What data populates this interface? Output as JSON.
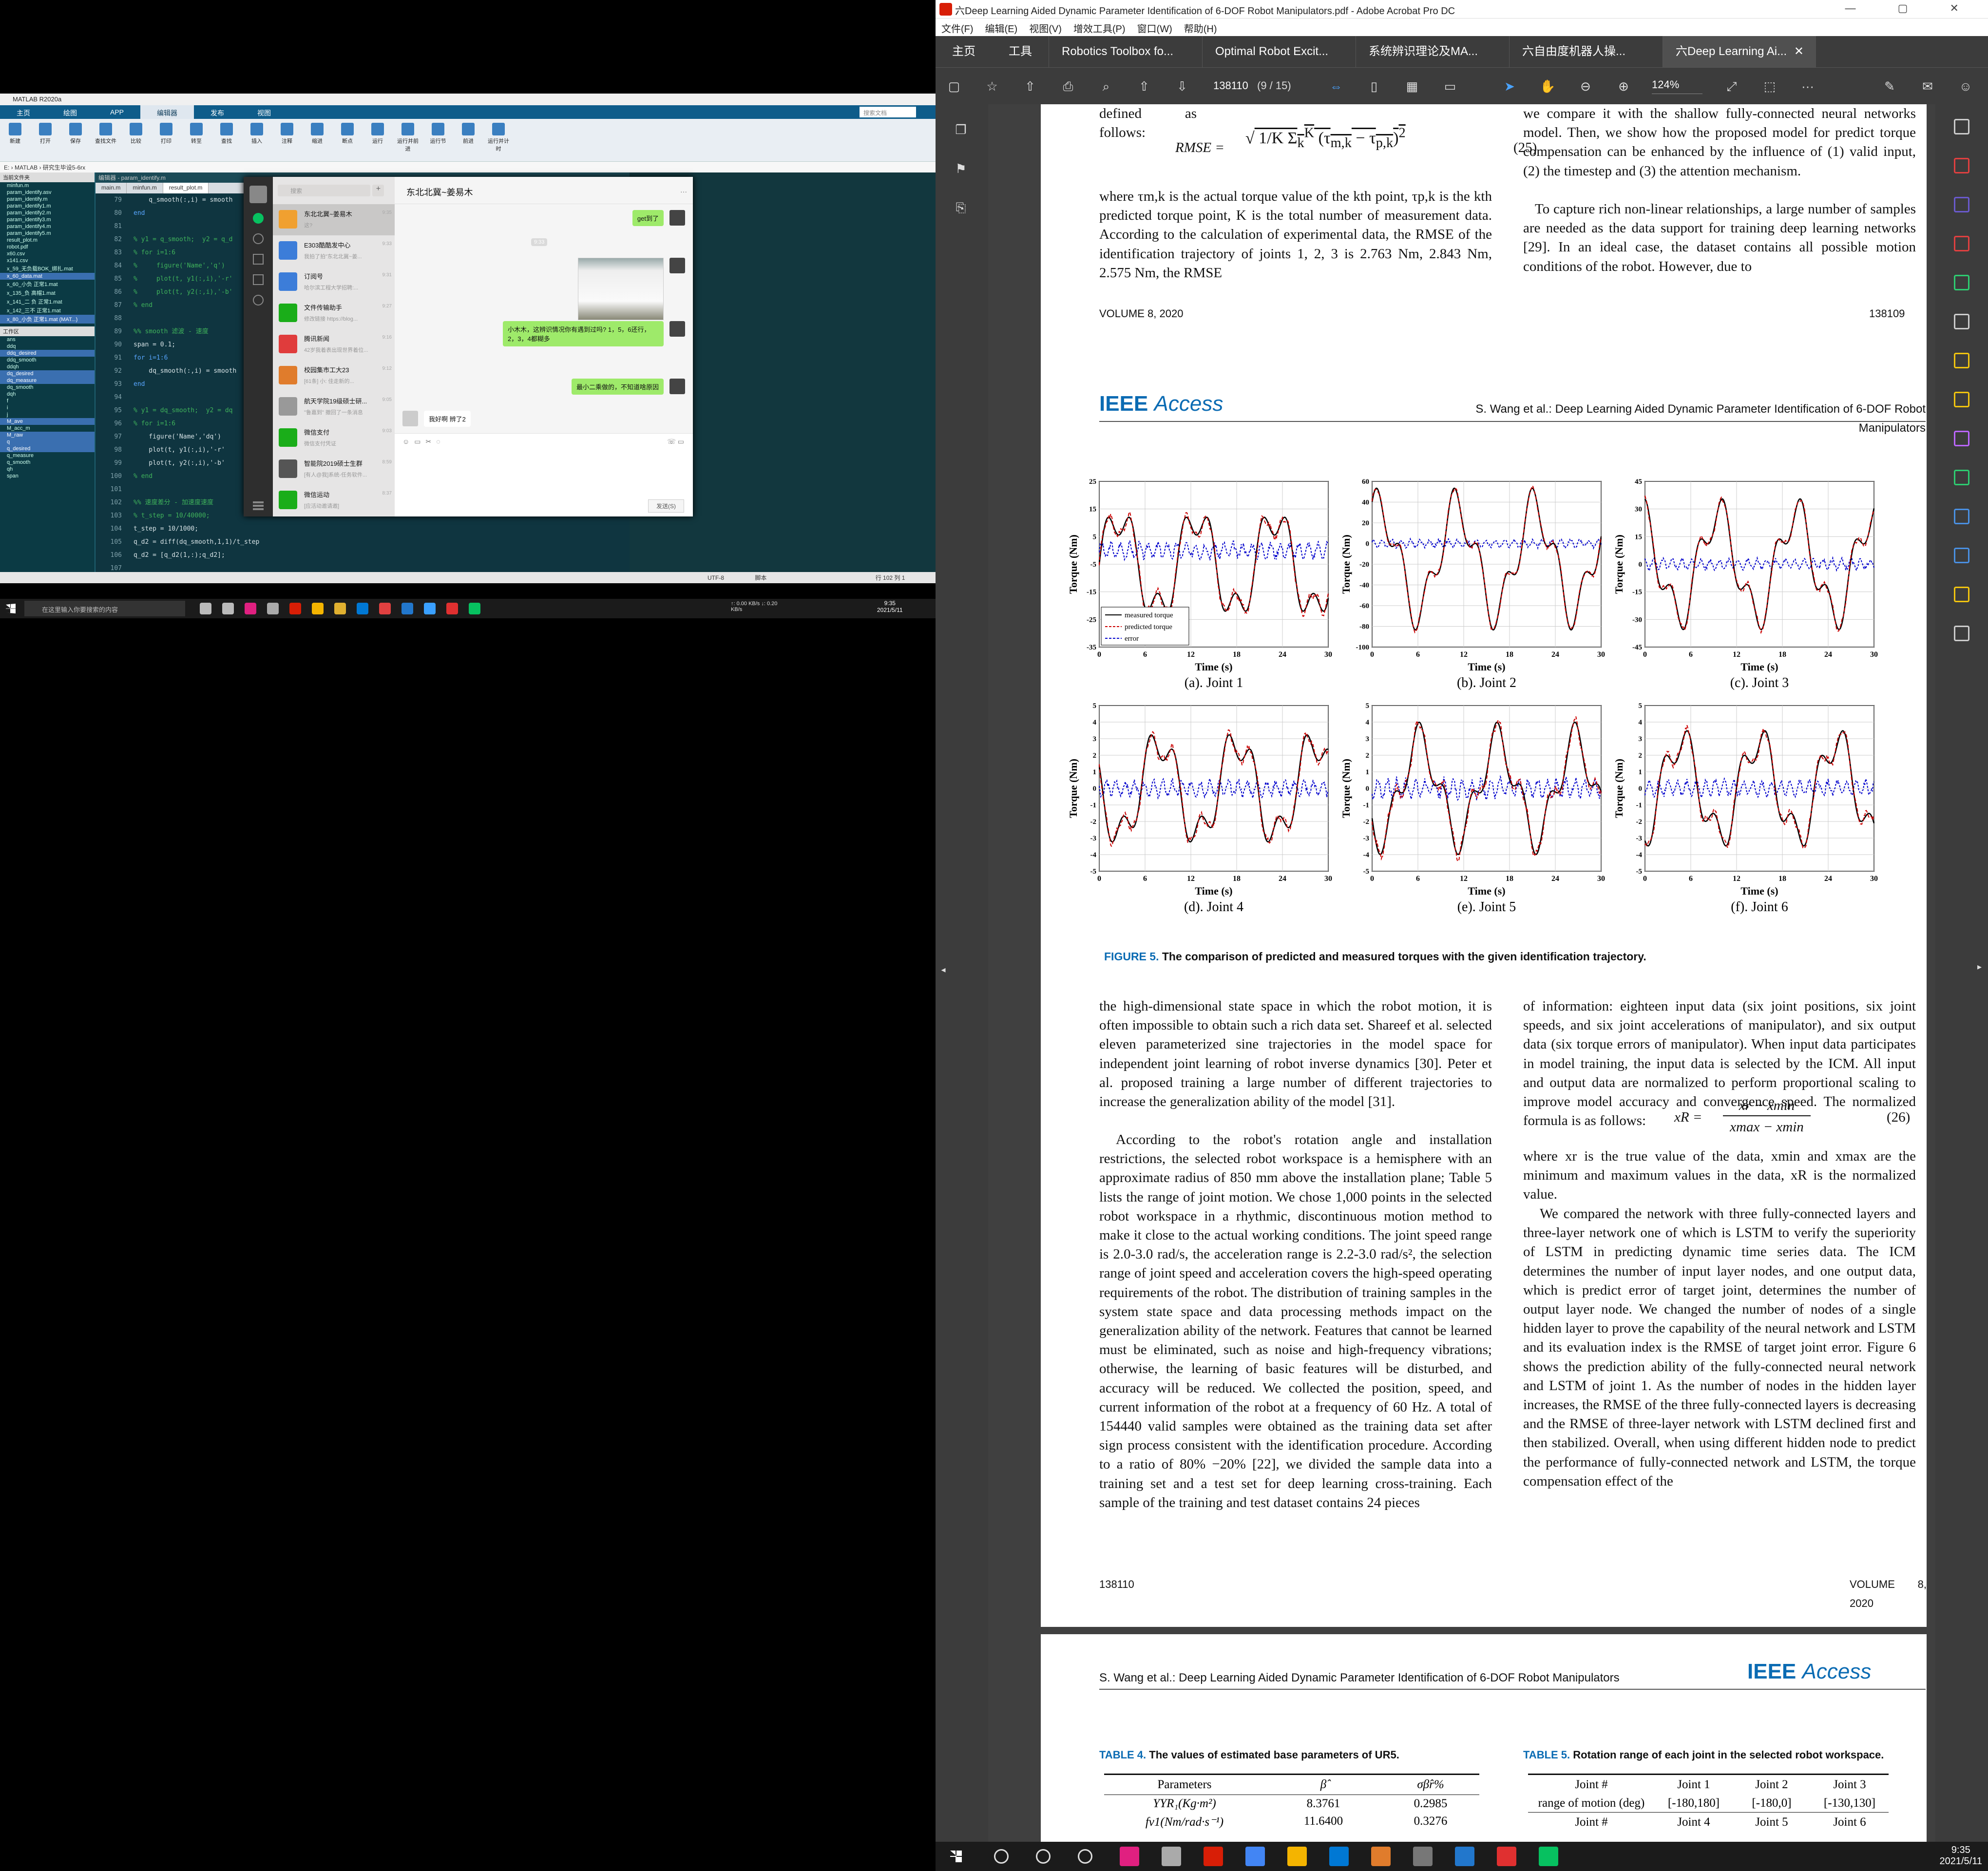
{
  "matlab": {
    "title": "MATLAB R2020a",
    "tabs": [
      "主页",
      "绘图",
      "APP",
      "编辑器",
      "发布",
      "视图"
    ],
    "ribbon": [
      "新建",
      "打开",
      "保存",
      "查找文件",
      "比较",
      "打印",
      "转至",
      "查找",
      "插入",
      "注释",
      "缩进",
      "断点",
      "运行",
      "运行并前进",
      "运行节",
      "前进",
      "运行并计时"
    ],
    "search_placeholder": "搜索文档",
    "address": "E: › MATLAB › 研究生毕设5-6rx",
    "left_header": "当前文件夹",
    "files": [
      "minfun.m",
      "param_identify.asv",
      "param_identify.m",
      "param_identify1.m",
      "param_identify2.m",
      "param_identify3.m",
      "param_identify4.m",
      "param_identify5.m",
      "result_plot.m",
      "robot.pdf",
      "x60.csv",
      "x141.csv",
      "x_59_无负载BOK_绑扎.mat",
      "x_60_data.mat",
      "x_60_小负 正常1.mat",
      "x_135_负 高帽1.mat",
      "x_141_二 负 正常1.mat",
      "x_142_三不 正常1.mat",
      "x_80_小负 正常1.mat (MAT...)"
    ],
    "workspace_header": "工作区",
    "ws_items": [
      "ans",
      "ddq",
      "ddq_desired",
      "ddq_smooth",
      "ddqh",
      "dq_desired",
      "dq_measure",
      "dq_smooth",
      "dqh",
      "f",
      "i",
      "j",
      "M_ave",
      "M_acc_m",
      "M_raw",
      "q",
      "q_desired",
      "q_measure",
      "q_smooth",
      "qh",
      "span"
    ],
    "editor_title": "编辑器 - param_identify.m",
    "editor_tabs": [
      "main.m",
      "minfun.m",
      "result_plot.m"
    ],
    "code": [
      [
        "79",
        "    q_smooth(:,i) = smooth"
      ],
      [
        "80",
        "end"
      ],
      [
        "81",
        ""
      ],
      [
        "82",
        "% y1 = q_smooth;  y2 = q_d"
      ],
      [
        "83",
        "% for i=1:6"
      ],
      [
        "84",
        "%     figure('Name','q')"
      ],
      [
        "85",
        "%     plot(t, y1(:,i),'-r'"
      ],
      [
        "86",
        "%     plot(t, y2(:,i),'-b'"
      ],
      [
        "87",
        "% end"
      ],
      [
        "88",
        ""
      ],
      [
        "89",
        "%% smooth 滤波 - 速度"
      ],
      [
        "90",
        "span = 0.1;"
      ],
      [
        "91",
        "for i=1:6"
      ],
      [
        "92",
        "    dq_smooth(:,i) = smooth"
      ],
      [
        "93",
        "end"
      ],
      [
        "94",
        ""
      ],
      [
        "95",
        "% y1 = dq_smooth;  y2 = dq"
      ],
      [
        "96",
        "% for i=1:6"
      ],
      [
        "97",
        "    figure('Name','dq')"
      ],
      [
        "98",
        "    plot(t, y1(:,i),'-r'"
      ],
      [
        "99",
        "    plot(t, y2(:,i),'-b'"
      ],
      [
        "100",
        "% end"
      ],
      [
        "101",
        ""
      ],
      [
        "102",
        "%% 速度差分 - 加速度速度"
      ],
      [
        "103",
        "% t_step = 10/40000;"
      ],
      [
        "104",
        "t_step = 10/1000;"
      ],
      [
        "105",
        "q_d2 = diff(dq_smooth,1,1)/t_step"
      ],
      [
        "106",
        "q_d2 = [q_d2(1,:);q_d2];"
      ],
      [
        "107",
        ""
      ],
      [
        "108",
        "span = 0.05;"
      ],
      [
        "109",
        "for i=1:6"
      ],
      [
        "110",
        "    ddq_smooth(:,i) = smooth(q_d2(:,i),span,'rloess')"
      ],
      [
        "111",
        "end"
      ],
      [
        "112",
        ""
      ]
    ],
    "status": [
      "UTF-8",
      "脚本",
      "行 102  列 1"
    ]
  },
  "wechat": {
    "search_placeholder": "搜索",
    "chat_title": "东北北冀~姜易木",
    "contacts": [
      {
        "name": "东北北冀~姜易木",
        "preview": "这?",
        "time": "9:35"
      },
      {
        "name": "E303酷酷发中心",
        "preview": "我拍了拍\"东北北冀~姜...",
        "time": "9:33"
      },
      {
        "name": "订阅号",
        "preview": "哈尔滨工程大学招聘:...",
        "time": "9:31"
      },
      {
        "name": "文件传输助手",
        "preview": "修改链接 https://blog...",
        "time": "9:27"
      },
      {
        "name": "腾讯新闻",
        "preview": "42岁我着表出现世界着位...",
        "time": "9:16"
      },
      {
        "name": "校园集市工大23",
        "preview": "[61条] 小: 佳走新的...",
        "time": "9:12"
      },
      {
        "name": "航天学院19级硕士研...",
        "preview": "\"鲁嘉到\" 撤回了一条消息",
        "time": "9:05"
      },
      {
        "name": "微信支付",
        "preview": "微信支付凭证",
        "time": "9:03"
      },
      {
        "name": "智能院2019硕士生群",
        "preview": "[有人@我]系统-任务软件...",
        "time": "8:59"
      },
      {
        "name": "微信运动",
        "preview": "[应活动邀请邀]",
        "time": "8:37"
      }
    ],
    "messages": [
      {
        "side": "me",
        "text": "get到了"
      },
      {
        "side": "time",
        "text": "9:33"
      },
      {
        "side": "me",
        "text": "小木木，这辨识情况你有遇到过吗? 1，5，6还行，2，3，4都糊多"
      },
      {
        "side": "me",
        "text": "最小二乘做的，不知道啥原因"
      },
      {
        "side": "ot",
        "text": "我好啊 辨了2"
      },
      {
        "side": "me",
        "text": "这?"
      }
    ],
    "send_label": "发送(S)"
  },
  "left_taskbar": {
    "search_placeholder": "在这里输入你要搜索的内容",
    "net": "↑: 0.00 KB/s  ↓: 0.20 KB/s",
    "time": "9:35",
    "date": "2021/5/11"
  },
  "acrobat": {
    "title": "六Deep Learning Aided Dynamic Parameter Identification of 6-DOF Robot Manipulators.pdf - Adobe Acrobat Pro DC",
    "menu": [
      "文件(F)",
      "编辑(E)",
      "视图(V)",
      "增效工具(P)",
      "窗口(W)",
      "帮助(H)"
    ],
    "tabs": [
      "主页",
      "工具"
    ],
    "doc_tabs": [
      "Robotics Toolbox fo...",
      "Optimal Robot Excit...",
      "系统辨识理论及MA...",
      "六自由度机器人操...",
      "六Deep Learning Ai..."
    ],
    "login": "登录",
    "page_num": "138110",
    "page_info": "(9 / 15)",
    "zoom": "124%"
  },
  "page1": {
    "defined": "defined as follows:",
    "eq25_label": "RMSE =",
    "eq25_num": "(25)",
    "left_text": "where τm,k is the actual torque value of the kth point, τp,k is the kth predicted torque point, K is the total number of measurement data. According to the calculation of experimental data, the RMSE of the identification trajectory of joints 1, 2, 3 is 2.763 Nm, 2.843 Nm, 2.575 Nm, the RMSE",
    "right_text": "we compare it with the shallow fully-connected neural networks model. Then, we show how the proposed model for predict torque compensation can be enhanced by the influence of (1) valid input, (2) the timestep and (3) the attention mechanism.",
    "right_text2": "To capture rich non-linear relationships, a large number of samples are needed as the data support for training deep learning networks [29]. In an ideal case, the dataset contains all possible motion conditions of the robot. However, due to",
    "footer_left": "VOLUME 8, 2020",
    "footer_right": "138109"
  },
  "page2": {
    "logo_a": "IEEE",
    "logo_b": "Access",
    "header": "S. Wang et al.: Deep Learning Aided Dynamic Parameter Identification of 6-DOF Robot Manipulators",
    "fig_caption_label": "FIGURE 5.",
    "fig_caption": "The comparison of predicted and measured torques with the given identification trajectory.",
    "col1_p1": "the high-dimensional state space in which the robot motion, it is often impossible to obtain such a rich data set. Shareef et al. selected eleven parameterized sine trajectories in the model space for independent joint learning of robot inverse dynamics [30]. Peter et al. proposed training a large number of different trajectories to increase the generalization ability of the model [31].",
    "col1_p2": "According to the robot's rotation angle and installation restrictions, the selected robot workspace is a hemisphere with an approximate radius of 850 mm above the installation plane; Table 5 lists the range of joint motion. We chose 1,000 points in the selected robot workspace in a rhythmic, discontinuous motion method to make it close to the actual working conditions. The joint speed range is 2.0-3.0 rad/s, the acceleration range is 2.2-3.0 rad/s², the selection range of joint speed and acceleration covers the high-speed operating requirements of the robot. The distribution of training samples in the system state space and data processing methods impact on the generalization ability of the network. Features that cannot be learned must be eliminated, such as noise and high-frequency vibrations; otherwise, the learning of basic features will be disturbed, and accuracy will be reduced. We collected the position, speed, and current information of the robot at a frequency of 60 Hz. A total of 154440 valid samples were obtained as the training data set after sign process consistent with the identification procedure. According to a ratio of 80% −20% [22], we divided the sample data into a training set and a test set for deep learning cross-training. Each sample of the training and test dataset contains 24 pieces",
    "col2_p1": "of information: eighteen input data (six joint positions, six joint speeds, and six joint accelerations of manipulator), and six output data (six torque errors of manipulator). When input data participates in model training, the input data is selected by the ICM. All input and output data are normalized to perform proportional scaling to improve model accuracy and convergence speed. The normalized formula is as follows:",
    "eq26_lhs": "xR =",
    "eq26_num_top": "xr − xmin",
    "eq26_den": "xmax − xmin",
    "eq26_num": "(26)",
    "col2_p2": "where xr is the true value of the data, xmin and xmax are the minimum and maximum values in the data, xR is the normalized value.",
    "col2_p3": "We compared the network with three fully-connected layers and three-layer network one of which is LSTM to verify the superiority of LSTM in predicting dynamic time series data. The ICM determines the number of input layer nodes, and one output data, which is predict error of target joint, determines the number of output layer node. We changed the number of nodes of a single hidden layer to prove the capability of the neural network and LSTM and its evaluation index is the RMSE of target joint error. Figure 6 shows the prediction ability of the fully-connected neural network and LSTM of joint 1. As the number of nodes in the hidden layer increases, the RMSE of the three fully-connected layers is decreasing and the RMSE of three-layer network with LSTM declined first and then stabilized. Overall, when using different hidden node to predict the performance of fully-connected network and LSTM, the torque compensation effect of the",
    "footer_left": "138110",
    "footer_right": "VOLUME 8, 2020"
  },
  "page3": {
    "header": "S. Wang et al.: Deep Learning Aided Dynamic Parameter Identification of 6-DOF Robot Manipulators",
    "t4_label": "TABLE 4.",
    "t4_title": "The values of estimated base parameters of UR5.",
    "t4_cols": [
      "Parameters",
      "β̂",
      "σβ̂r%"
    ],
    "t4_rows": [
      [
        "YYR₁(Kg·m²)",
        "8.3761",
        "0.2985"
      ],
      [
        "fv1(Nm/rad·s⁻¹)",
        "11.6400",
        "0.3276"
      ]
    ],
    "t5_label": "TABLE 5.",
    "t5_title": "Rotation range of each joint in the selected robot workspace.",
    "t5_head": [
      "Joint #",
      "Joint 1",
      "Joint 2",
      "Joint 3"
    ],
    "t5_row": [
      "range of motion (deg)",
      "[-180,180]",
      "[-180,0]",
      "[-130,130]"
    ],
    "t5_head2": [
      "Joint #",
      "Joint 4",
      "Joint 5",
      "Joint 6"
    ]
  },
  "chart_data": [
    {
      "type": "line",
      "title": "(a). Joint 1",
      "xlabel": "Time (s)",
      "ylabel": "Torque (Nm)",
      "xlim": [
        0,
        30
      ],
      "ylim": [
        -35,
        25
      ],
      "xticks": [
        0,
        6,
        12,
        18,
        24,
        30
      ],
      "yticks": [
        25,
        15,
        5,
        -5,
        -15,
        -25,
        -35
      ],
      "legend": [
        "measured torque",
        "predicted torque",
        "error"
      ],
      "legend_pos": "bottom-left",
      "amp": 24,
      "offset": -5,
      "noise": 3
    },
    {
      "type": "line",
      "title": "(b). Joint 2",
      "xlabel": "Time (s)",
      "ylabel": "Torque (Nm)",
      "xlim": [
        0,
        30
      ],
      "ylim": [
        -100,
        60
      ],
      "xticks": [
        0,
        6,
        12,
        18,
        24,
        30
      ],
      "yticks": [
        60,
        40,
        20,
        0,
        -20,
        -40,
        -60,
        -80,
        -100
      ],
      "amp": 70,
      "offset": -15,
      "noise": 4
    },
    {
      "type": "line",
      "title": "(c). Joint 3",
      "xlabel": "Time (s)",
      "ylabel": "Torque (Nm)",
      "xlim": [
        0,
        30
      ],
      "ylim": [
        -45,
        45
      ],
      "xticks": [
        0,
        6,
        12,
        18,
        24,
        30
      ],
      "yticks": [
        45,
        30,
        15,
        0,
        -15,
        -30,
        -45
      ],
      "amp": 38,
      "offset": 0,
      "noise": 3
    },
    {
      "type": "line",
      "title": "(d). Joint 4",
      "xlabel": "Time (s)",
      "ylabel": "Torque (Nm)",
      "xlim": [
        0,
        30
      ],
      "ylim": [
        -5,
        5
      ],
      "xticks": [
        0,
        6,
        12,
        18,
        24,
        30
      ],
      "yticks": [
        5,
        4,
        3,
        2,
        1,
        0,
        -1,
        -2,
        -3,
        -4,
        -5
      ],
      "amp": 4,
      "offset": 0,
      "noise": 0.5
    },
    {
      "type": "line",
      "title": "(e). Joint 5",
      "xlabel": "Time (s)",
      "ylabel": "Torque (Nm)",
      "xlim": [
        0,
        30
      ],
      "ylim": [
        -5,
        5
      ],
      "xticks": [
        0,
        6,
        12,
        18,
        24,
        30
      ],
      "yticks": [
        5,
        4,
        3,
        2,
        1,
        0,
        -1,
        -2,
        -3,
        -4,
        -5
      ],
      "amp": 4,
      "offset": 0,
      "noise": 0.6
    },
    {
      "type": "line",
      "title": "(f). Joint 6",
      "xlabel": "Time (s)",
      "ylabel": "Torque (Nm)",
      "xlim": [
        0,
        30
      ],
      "ylim": [
        -5,
        5
      ],
      "xticks": [
        0,
        6,
        12,
        18,
        24,
        30
      ],
      "yticks": [
        5,
        4,
        3,
        2,
        1,
        0,
        -1,
        -2,
        -3,
        -4,
        -5
      ],
      "amp": 4,
      "offset": 0,
      "noise": 0.5
    }
  ],
  "right_taskbar": {
    "time": "9:35",
    "date": "2021/5/11"
  },
  "colors": {
    "measured": "#000000",
    "predicted": "#cc0000",
    "error": "#0000cc",
    "accent": "#0a6bb3",
    "wechat_green": "#9eea6a"
  }
}
